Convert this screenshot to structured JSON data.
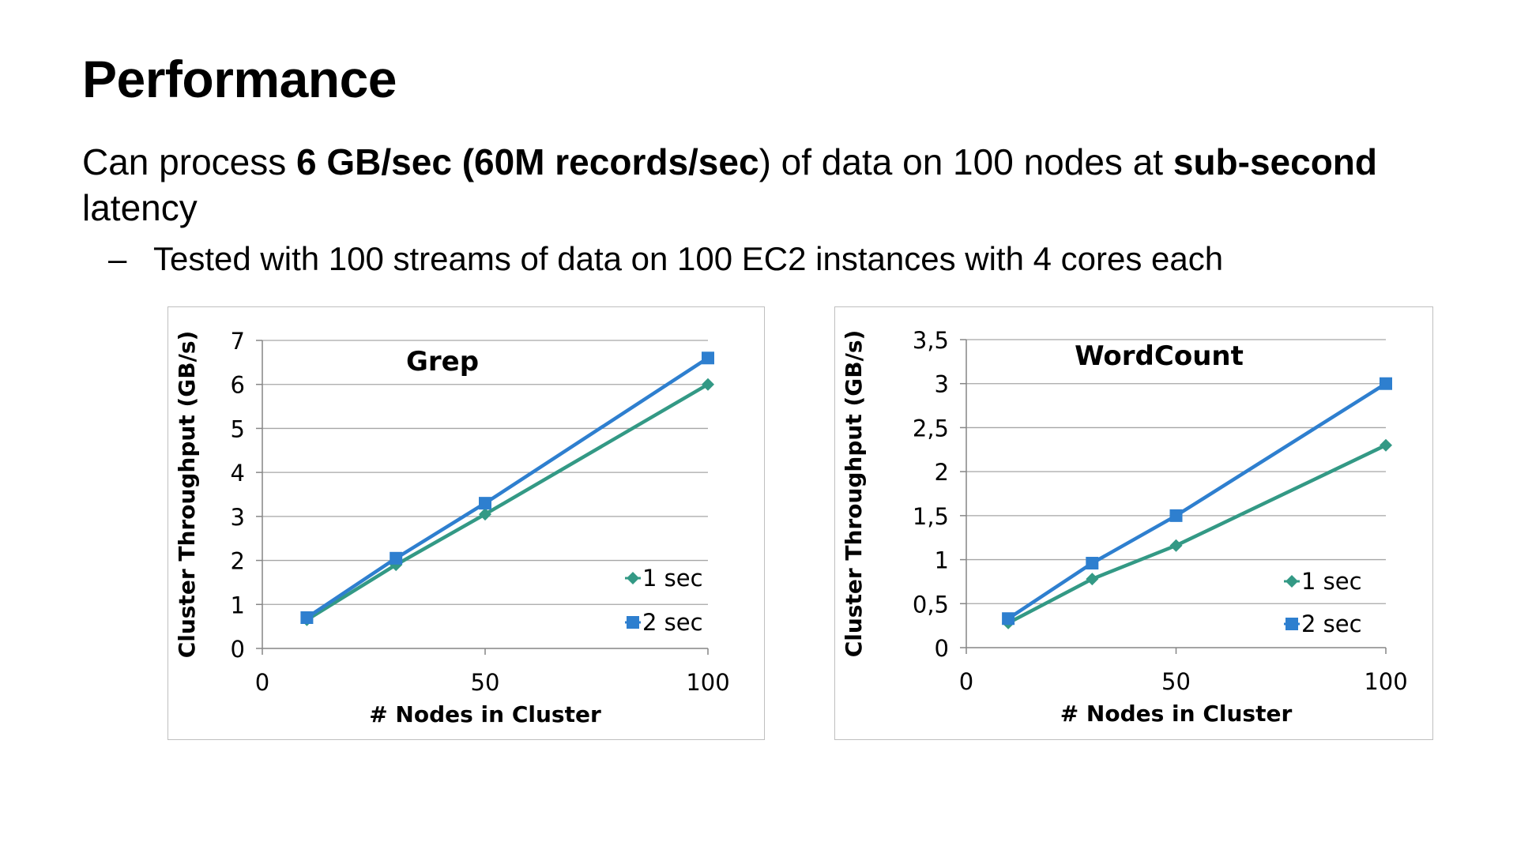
{
  "slide": {
    "title": "Performance",
    "line1_prefix": "Can process ",
    "line1_bold1": "6 GB/sec (60M records/sec",
    "line1_mid": ") of data on 100 nodes at ",
    "line1_bold2": "sub-second",
    "line1_suffix": " latency",
    "bullet_dash": "–",
    "bullet_text": "Tested with 100 streams of data on 100 EC2 instances with 4 cores each"
  },
  "colors": {
    "series_1sec": "#339985",
    "series_2sec": "#2e7fcf",
    "gridline": "#a6a6a6",
    "axis": "#868686"
  },
  "chart_data": [
    {
      "type": "line",
      "title": "Grep",
      "xlabel": "# Nodes in Cluster",
      "ylabel": "Cluster Throughput (GB/s)",
      "xlim": [
        0,
        100
      ],
      "ylim": [
        0,
        7
      ],
      "xticks": [
        0,
        50,
        100
      ],
      "yticks": [
        0,
        1,
        2,
        3,
        4,
        5,
        6,
        7
      ],
      "xtick_labels": [
        "0",
        "50",
        "100"
      ],
      "ytick_labels": [
        "0",
        "1",
        "2",
        "3",
        "4",
        "5",
        "6",
        "7"
      ],
      "grid": "horizontal",
      "legend_position": "bottom-right",
      "series": [
        {
          "name": "1 sec",
          "marker": "diamond",
          "x": [
            10,
            30,
            50,
            100
          ],
          "values": [
            0.65,
            1.9,
            3.05,
            6.0
          ]
        },
        {
          "name": "2 sec",
          "marker": "square",
          "x": [
            10,
            30,
            50,
            100
          ],
          "values": [
            0.7,
            2.05,
            3.3,
            6.6
          ]
        }
      ]
    },
    {
      "type": "line",
      "title": "WordCount",
      "xlabel": "# Nodes in Cluster",
      "ylabel": "Cluster Throughput (GB/s)",
      "xlim": [
        0,
        100
      ],
      "ylim": [
        0,
        3.5
      ],
      "xticks": [
        0,
        50,
        100
      ],
      "yticks": [
        0,
        0.5,
        1,
        1.5,
        2,
        2.5,
        3,
        3.5
      ],
      "xtick_labels": [
        "0",
        "50",
        "100"
      ],
      "ytick_labels": [
        "0",
        "0,5",
        "1",
        "1,5",
        "2",
        "2,5",
        "3",
        "3,5"
      ],
      "grid": "horizontal",
      "legend_position": "bottom-right",
      "series": [
        {
          "name": "1 sec",
          "marker": "diamond",
          "x": [
            10,
            30,
            50,
            100
          ],
          "values": [
            0.28,
            0.78,
            1.16,
            2.3
          ]
        },
        {
          "name": "2 sec",
          "marker": "square",
          "x": [
            10,
            30,
            50,
            100
          ],
          "values": [
            0.33,
            0.96,
            1.5,
            3.0
          ]
        }
      ]
    }
  ]
}
